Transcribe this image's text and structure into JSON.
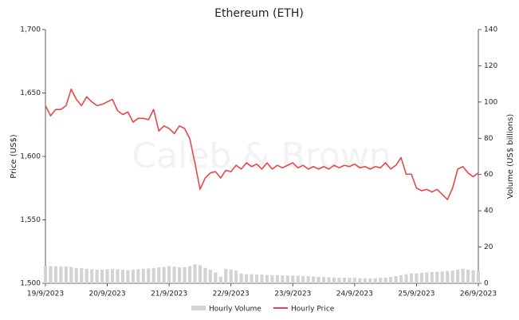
{
  "chart_data": {
    "type": "bar-line",
    "title": "Ethereum (ETH)",
    "watermark": "Caleb & Brown",
    "ylabel": "Price (US$)",
    "y2label": "Volume (US$ billions)",
    "categories": [
      "19/9/2023",
      null,
      null,
      null,
      null,
      null,
      null,
      null,
      null,
      null,
      null,
      null,
      "20/9/2023",
      null,
      null,
      null,
      null,
      null,
      null,
      null,
      null,
      null,
      null,
      null,
      "21/9/2023",
      null,
      null,
      null,
      null,
      null,
      null,
      null,
      null,
      null,
      null,
      null,
      "22/9/2023",
      null,
      null,
      null,
      null,
      null,
      null,
      null,
      null,
      null,
      null,
      null,
      "23/9/2023",
      null,
      null,
      null,
      null,
      null,
      null,
      null,
      null,
      null,
      null,
      null,
      "24/9/2023",
      null,
      null,
      null,
      null,
      null,
      null,
      null,
      null,
      null,
      null,
      null,
      "25/9/2023",
      null,
      null,
      null,
      null,
      null,
      null,
      null,
      null,
      null,
      null,
      null,
      "26/9/2023"
    ],
    "series": [
      {
        "name": "Hourly Volume",
        "type": "bar",
        "axis": "y2",
        "color": "#d3d3d3",
        "values": [
          9.5,
          9.5,
          9.4,
          9.3,
          9.2,
          9.0,
          8.5,
          8.3,
          8.0,
          7.8,
          7.5,
          7.5,
          7.8,
          8.0,
          7.8,
          7.5,
          7.3,
          7.5,
          7.8,
          8.0,
          8.2,
          8.5,
          8.8,
          9.0,
          9.5,
          9.2,
          8.8,
          9.0,
          9.5,
          10.5,
          10.0,
          8.5,
          7.5,
          6.0,
          3.5,
          8.0,
          7.5,
          7.0,
          5.5,
          5.0,
          5.0,
          4.8,
          4.8,
          4.6,
          4.5,
          4.5,
          4.4,
          4.3,
          4.3,
          4.2,
          4.0,
          4.0,
          3.8,
          3.6,
          3.5,
          3.3,
          3.2,
          3.0,
          3.0,
          3.0,
          3.0,
          2.8,
          2.8,
          2.7,
          2.8,
          3.0,
          3.2,
          3.5,
          4.0,
          4.5,
          5.0,
          5.5,
          5.5,
          5.8,
          6.0,
          6.2,
          6.3,
          6.5,
          6.8,
          7.0,
          7.5,
          8.0,
          7.5,
          7.2,
          7.0
        ]
      },
      {
        "name": "Hourly Price",
        "type": "line",
        "axis": "y",
        "color": "#e8474a",
        "values": [
          1640,
          1632,
          1637,
          1637,
          1640,
          1653,
          1645,
          1640,
          1647,
          1643,
          1640,
          1641,
          1643,
          1645,
          1636,
          1633,
          1635,
          1627,
          1630,
          1630,
          1629,
          1637,
          1620,
          1624,
          1622,
          1618,
          1624,
          1622,
          1614,
          1595,
          1574,
          1583,
          1587,
          1588,
          1583,
          1589,
          1588,
          1593,
          1590,
          1595,
          1592,
          1594,
          1590,
          1595,
          1590,
          1593,
          1591,
          1593,
          1595,
          1591,
          1593,
          1590,
          1592,
          1590,
          1592,
          1590,
          1593,
          1591,
          1593,
          1592,
          1594,
          1591,
          1592,
          1590,
          1592,
          1591,
          1595,
          1590,
          1593,
          1599,
          1586,
          1586,
          1575,
          1573,
          1574,
          1572,
          1574,
          1570,
          1566,
          1575,
          1590,
          1592,
          1587,
          1584,
          1587
        ]
      }
    ],
    "ylim": [
      1500,
      1700
    ],
    "yticks": [
      {
        "value": 1500,
        "label": "1,500"
      },
      {
        "value": 1550,
        "label": "1,550"
      },
      {
        "value": 1600,
        "label": "1,600"
      },
      {
        "value": 1650,
        "label": "1,650"
      },
      {
        "value": 1700,
        "label": "1,700"
      }
    ],
    "y2lim": [
      0,
      140
    ],
    "y2ticks": [
      0,
      20,
      40,
      60,
      80,
      100,
      120,
      140
    ],
    "legend": "bottom",
    "grid": false
  }
}
